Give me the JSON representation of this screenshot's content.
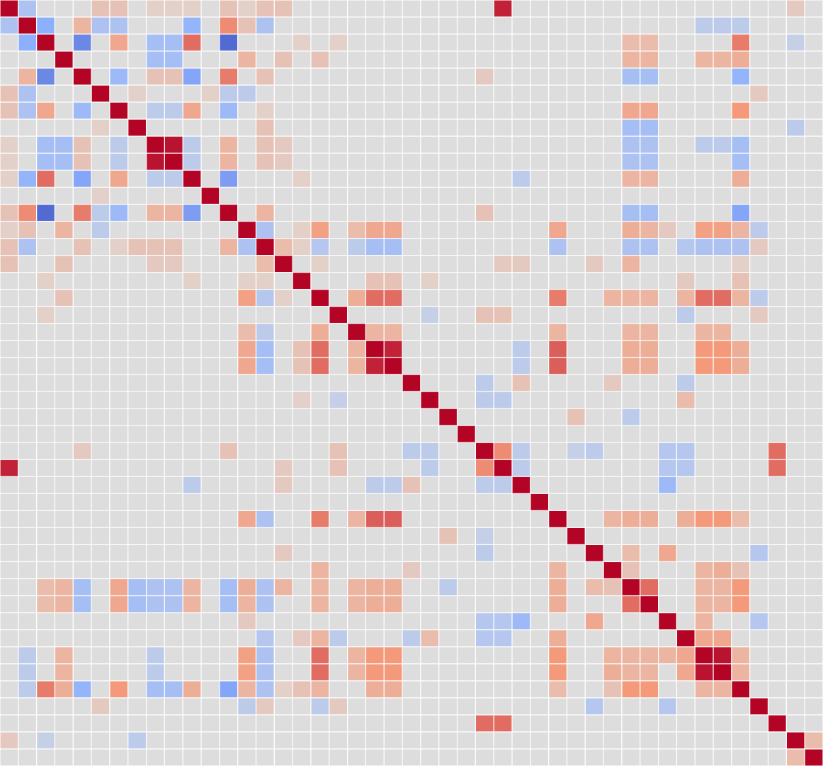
{
  "chart_data": {
    "type": "heatmap",
    "title": "",
    "xlabel": "",
    "ylabel": "",
    "n_variables": 45,
    "colormap": "coolwarm",
    "value_range": [
      -1,
      1
    ],
    "grid": true,
    "gridline_color": "#ffffff",
    "palette": {
      "negative_strong": "#3b4cc0",
      "neutral": "#dddddd",
      "positive_strong": "#b40426"
    },
    "default_value": 0,
    "cells": [
      [
        0,
        1,
        -0.3
      ],
      [
        0,
        5,
        0.2
      ],
      [
        0,
        6,
        0.2
      ],
      [
        0,
        8,
        0.1
      ],
      [
        0,
        9,
        0.1
      ],
      [
        0,
        10,
        0.1
      ],
      [
        0,
        12,
        0.2
      ],
      [
        0,
        13,
        0.1
      ],
      [
        0,
        14,
        0.2
      ],
      [
        0,
        15,
        0.2
      ],
      [
        0,
        27,
        0.9
      ],
      [
        0,
        43,
        0.15
      ],
      [
        1,
        2,
        -0.5
      ],
      [
        1,
        4,
        0.3
      ],
      [
        1,
        5,
        -0.3
      ],
      [
        1,
        6,
        -0.3
      ],
      [
        1,
        10,
        -0.45
      ],
      [
        1,
        12,
        0.55
      ],
      [
        1,
        13,
        0.2
      ],
      [
        1,
        14,
        -0.3
      ],
      [
        1,
        38,
        -0.2
      ],
      [
        1,
        39,
        -0.2
      ],
      [
        1,
        40,
        -0.2
      ],
      [
        2,
        4,
        -0.7
      ],
      [
        2,
        6,
        0.4
      ],
      [
        2,
        8,
        -0.35
      ],
      [
        2,
        9,
        -0.35
      ],
      [
        2,
        10,
        0.65
      ],
      [
        2,
        12,
        -0.85
      ],
      [
        2,
        16,
        0.1
      ],
      [
        2,
        18,
        0.1
      ],
      [
        2,
        34,
        0.25
      ],
      [
        2,
        35,
        0.25
      ],
      [
        2,
        40,
        0.6
      ],
      [
        2,
        43,
        -0.15
      ],
      [
        3,
        8,
        -0.35
      ],
      [
        3,
        9,
        -0.35
      ],
      [
        3,
        13,
        0.3
      ],
      [
        3,
        15,
        0.2
      ],
      [
        3,
        17,
        0.2
      ],
      [
        3,
        34,
        0.3
      ],
      [
        3,
        35,
        0.3
      ],
      [
        3,
        38,
        0.3
      ],
      [
        3,
        39,
        0.3
      ],
      [
        3,
        40,
        0.35
      ],
      [
        4,
        6,
        -0.4
      ],
      [
        4,
        8,
        0.2
      ],
      [
        4,
        9,
        0.2
      ],
      [
        4,
        10,
        -0.55
      ],
      [
        4,
        12,
        0.6
      ],
      [
        4,
        14,
        0.2
      ],
      [
        4,
        26,
        0.15
      ],
      [
        4,
        34,
        -0.35
      ],
      [
        4,
        35,
        -0.35
      ],
      [
        4,
        40,
        -0.45
      ],
      [
        5,
        7,
        0.1
      ],
      [
        5,
        11,
        0.1
      ],
      [
        5,
        12,
        -0.2
      ],
      [
        5,
        13,
        -0.2
      ],
      [
        5,
        41,
        0.15
      ],
      [
        6,
        8,
        -0.2
      ],
      [
        6,
        9,
        -0.2
      ],
      [
        6,
        10,
        0.4
      ],
      [
        6,
        12,
        -0.4
      ],
      [
        6,
        14,
        0.1
      ],
      [
        6,
        34,
        0.4
      ],
      [
        6,
        35,
        0.4
      ],
      [
        6,
        40,
        0.5
      ],
      [
        7,
        14,
        0.2
      ],
      [
        7,
        34,
        -0.35
      ],
      [
        7,
        35,
        -0.35
      ],
      [
        7,
        43,
        -0.2
      ],
      [
        8,
        9,
        0.95
      ],
      [
        8,
        10,
        -0.2
      ],
      [
        8,
        12,
        0.3
      ],
      [
        8,
        14,
        0.2
      ],
      [
        8,
        15,
        0.15
      ],
      [
        8,
        34,
        -0.3
      ],
      [
        8,
        35,
        -0.3
      ],
      [
        8,
        38,
        -0.2
      ],
      [
        8,
        39,
        -0.2
      ],
      [
        8,
        40,
        -0.35
      ],
      [
        9,
        10,
        -0.2
      ],
      [
        9,
        12,
        0.3
      ],
      [
        9,
        14,
        0.2
      ],
      [
        9,
        15,
        0.15
      ],
      [
        9,
        34,
        -0.3
      ],
      [
        9,
        35,
        -0.3
      ],
      [
        9,
        40,
        -0.35
      ],
      [
        10,
        12,
        -0.6
      ],
      [
        10,
        16,
        0.1
      ],
      [
        10,
        28,
        -0.2
      ],
      [
        10,
        34,
        0.3
      ],
      [
        10,
        35,
        0.3
      ],
      [
        10,
        40,
        0.35
      ],
      [
        12,
        14,
        0.3
      ],
      [
        12,
        26,
        0.2
      ],
      [
        12,
        34,
        -0.35
      ],
      [
        12,
        35,
        -0.35
      ],
      [
        12,
        40,
        -0.55
      ],
      [
        13,
        14,
        -0.3
      ],
      [
        13,
        16,
        0.1
      ],
      [
        13,
        17,
        0.45
      ],
      [
        13,
        19,
        0.25
      ],
      [
        13,
        20,
        0.4
      ],
      [
        13,
        21,
        0.4
      ],
      [
        13,
        30,
        0.4
      ],
      [
        13,
        34,
        0.35
      ],
      [
        13,
        35,
        0.3
      ],
      [
        13,
        36,
        0.15
      ],
      [
        13,
        38,
        0.45
      ],
      [
        13,
        39,
        0.45
      ],
      [
        13,
        40,
        0.3
      ],
      [
        13,
        41,
        -0.2
      ],
      [
        14,
        15,
        0.25
      ],
      [
        14,
        16,
        0.1
      ],
      [
        14,
        17,
        -0.25
      ],
      [
        14,
        19,
        -0.2
      ],
      [
        14,
        20,
        -0.35
      ],
      [
        14,
        21,
        -0.35
      ],
      [
        14,
        30,
        -0.3
      ],
      [
        14,
        34,
        -0.3
      ],
      [
        14,
        35,
        -0.3
      ],
      [
        14,
        37,
        -0.25
      ],
      [
        14,
        38,
        -0.3
      ],
      [
        14,
        39,
        -0.3
      ],
      [
        14,
        40,
        -0.3
      ],
      [
        14,
        41,
        0.15
      ],
      [
        15,
        17,
        0.1
      ],
      [
        15,
        27,
        0.15
      ],
      [
        15,
        28,
        0.15
      ],
      [
        15,
        32,
        0.15
      ],
      [
        15,
        34,
        0.3
      ],
      [
        15,
        40,
        0.1
      ],
      [
        16,
        20,
        0.2
      ],
      [
        16,
        21,
        0.2
      ],
      [
        16,
        23,
        0.1
      ],
      [
        16,
        37,
        0.15
      ],
      [
        16,
        40,
        0.2
      ],
      [
        17,
        19,
        0.35
      ],
      [
        17,
        20,
        0.65
      ],
      [
        17,
        21,
        0.65
      ],
      [
        17,
        30,
        0.6
      ],
      [
        17,
        33,
        0.3
      ],
      [
        17,
        34,
        0.3
      ],
      [
        17,
        35,
        0.3
      ],
      [
        17,
        37,
        0.3
      ],
      [
        17,
        38,
        0.65
      ],
      [
        17,
        39,
        0.65
      ],
      [
        17,
        40,
        0.3
      ],
      [
        17,
        41,
        -0.2
      ],
      [
        18,
        23,
        -0.15
      ],
      [
        18,
        26,
        0.2
      ],
      [
        18,
        27,
        0.2
      ],
      [
        18,
        37,
        -0.2
      ],
      [
        18,
        41,
        0.15
      ],
      [
        19,
        20,
        0.3
      ],
      [
        19,
        21,
        0.3
      ],
      [
        19,
        30,
        0.3
      ],
      [
        19,
        34,
        0.3
      ],
      [
        19,
        35,
        0.3
      ],
      [
        19,
        38,
        0.3
      ],
      [
        19,
        39,
        0.3
      ],
      [
        20,
        21,
        0.9
      ],
      [
        20,
        28,
        -0.2
      ],
      [
        20,
        30,
        0.7
      ],
      [
        20,
        34,
        0.35
      ],
      [
        20,
        35,
        0.35
      ],
      [
        20,
        38,
        0.5
      ],
      [
        20,
        39,
        0.5
      ],
      [
        20,
        40,
        0.35
      ],
      [
        21,
        28,
        -0.2
      ],
      [
        21,
        30,
        0.7
      ],
      [
        21,
        34,
        0.35
      ],
      [
        21,
        35,
        0.35
      ],
      [
        21,
        38,
        0.5
      ],
      [
        21,
        39,
        0.5
      ],
      [
        21,
        40,
        0.35
      ],
      [
        22,
        26,
        -0.2
      ],
      [
        22,
        28,
        0.2
      ],
      [
        22,
        33,
        0.15
      ],
      [
        22,
        37,
        -0.2
      ],
      [
        23,
        26,
        -0.2
      ],
      [
        23,
        27,
        -0.2
      ],
      [
        23,
        37,
        0.25
      ],
      [
        24,
        31,
        0.2
      ],
      [
        24,
        34,
        -0.2
      ],
      [
        26,
        27,
        0.55
      ],
      [
        26,
        28,
        -0.2
      ],
      [
        26,
        31,
        -0.15
      ],
      [
        26,
        32,
        -0.2
      ],
      [
        26,
        36,
        -0.25
      ],
      [
        26,
        37,
        -0.25
      ],
      [
        26,
        42,
        0.65
      ],
      [
        27,
        28,
        -0.2
      ],
      [
        27,
        36,
        -0.25
      ],
      [
        27,
        37,
        -0.25
      ],
      [
        27,
        42,
        0.65
      ],
      [
        28,
        36,
        -0.4
      ],
      [
        30,
        33,
        0.3
      ],
      [
        30,
        34,
        0.35
      ],
      [
        30,
        35,
        0.35
      ],
      [
        30,
        37,
        0.35
      ],
      [
        30,
        38,
        0.5
      ],
      [
        30,
        39,
        0.5
      ],
      [
        30,
        40,
        0.25
      ],
      [
        32,
        34,
        0.25
      ],
      [
        32,
        36,
        0.4
      ],
      [
        32,
        41,
        -0.25
      ],
      [
        33,
        34,
        0.2
      ],
      [
        33,
        38,
        0.3
      ],
      [
        33,
        39,
        0.35
      ],
      [
        33,
        40,
        0.2
      ],
      [
        34,
        35,
        0.65
      ],
      [
        34,
        38,
        0.3
      ],
      [
        34,
        39,
        0.3
      ],
      [
        34,
        40,
        0.5
      ],
      [
        35,
        38,
        0.3
      ],
      [
        35,
        39,
        0.3
      ],
      [
        35,
        40,
        0.5
      ],
      [
        36,
        38,
        0.3
      ],
      [
        36,
        41,
        -0.25
      ],
      [
        37,
        38,
        0.4
      ],
      [
        37,
        39,
        0.4
      ],
      [
        38,
        39,
        0.95
      ],
      [
        38,
        40,
        0.3
      ],
      [
        39,
        40,
        0.3
      ],
      [
        43,
        44,
        0.25
      ]
    ]
  }
}
